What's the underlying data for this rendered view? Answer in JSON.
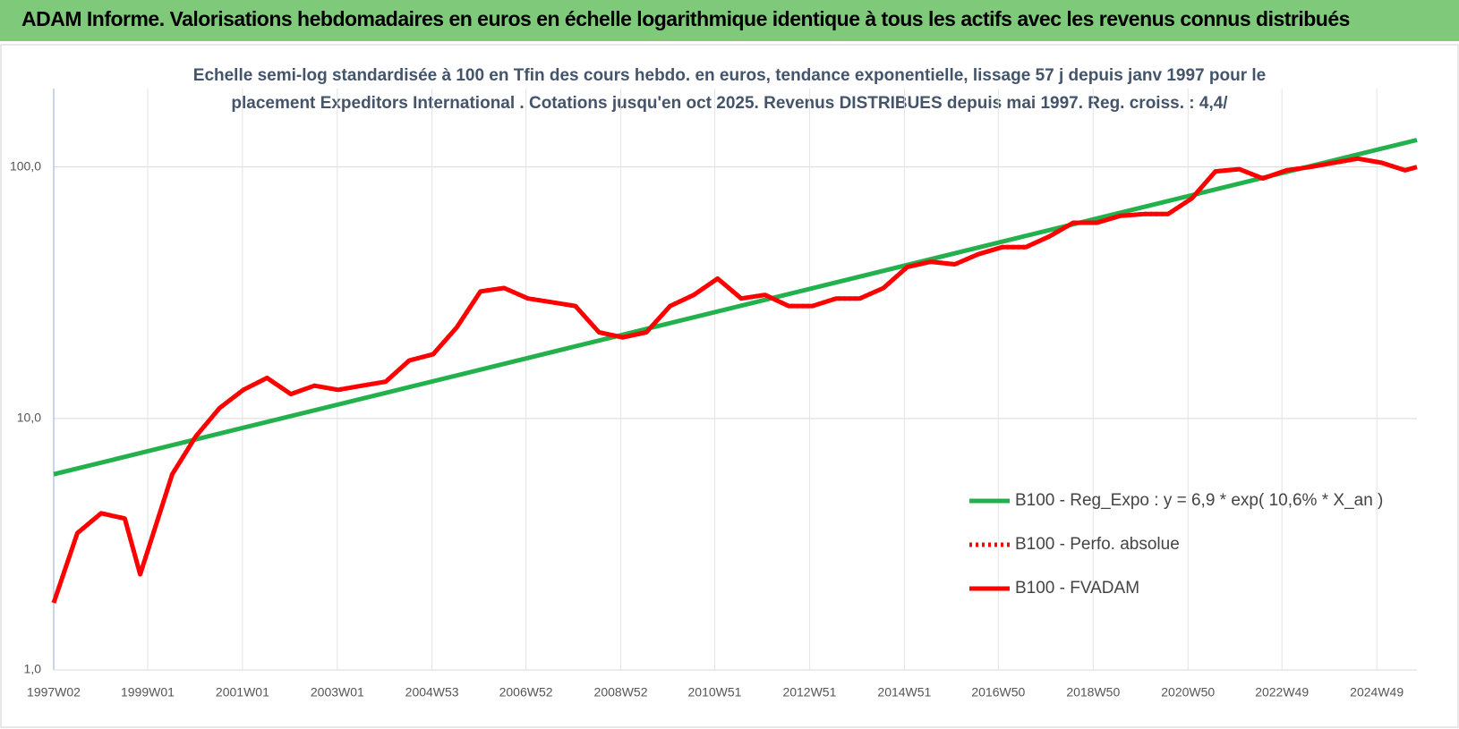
{
  "header": {
    "title": "ADAM Informe. Valorisations hebdomadaires en euros en échelle logarithmique identique à tous les actifs avec les revenus connus distribués"
  },
  "chart_data": {
    "type": "line",
    "subtitle": [
      "Echelle semi-log standardisée à 100 en Tfin des cours hebdo. en euros, tendance exponentielle, lissage 57 j depuis janv 1997 pour le",
      "placement Expeditors International . Cotations jusqu'en oct 2025. Revenus DISTRIBUES depuis mai 1997. Reg. croiss. : 4,4/"
    ],
    "log_scale": true,
    "grid": true,
    "legend": "right",
    "xlim": [
      "1997W02",
      "2025W41"
    ],
    "xticks": [
      "1997W02",
      "1999W01",
      "2001W01",
      "2003W01",
      "2004W53",
      "2006W52",
      "2008W52",
      "2010W51",
      "2012W51",
      "2014W51",
      "2016W50",
      "2018W50",
      "2020W50",
      "2022W49",
      "2024W49"
    ],
    "ylim": [
      1,
      205
    ],
    "yticks": [
      {
        "value": 1,
        "label": "1,0"
      },
      {
        "value": 10,
        "label": "10,0"
      },
      {
        "value": 100,
        "label": "100,0"
      }
    ],
    "series": [
      {
        "name": "B100 - Reg_Expo : y = 6,9 * exp( 10,6% *  X_an )",
        "color": "#22b14c",
        "x": [
          "1997W02",
          "2025W41"
        ],
        "values": [
          6.0,
          128
        ]
      },
      {
        "name": "B100 - Perfo. absolue",
        "color": "#ff0000",
        "dash": "dotted",
        "x": [
          "1997W02",
          "1997W28",
          "1998W02",
          "1998W28",
          "1998W45",
          "1999W28",
          "2000W02",
          "2000W28",
          "2001W02",
          "2001W28",
          "2002W02",
          "2002W28",
          "2003W02",
          "2003W28",
          "2004W02",
          "2004W28",
          "2005W02",
          "2005W28",
          "2006W02",
          "2006W28",
          "2007W02",
          "2007W28",
          "2008W02",
          "2008W28",
          "2009W02",
          "2009W28",
          "2010W02",
          "2010W28",
          "2011W02",
          "2011W28",
          "2012W02",
          "2012W28",
          "2013W02",
          "2013W28",
          "2014W02",
          "2014W28",
          "2015W02",
          "2015W28",
          "2016W02",
          "2016W28",
          "2017W02",
          "2017W28",
          "2018W02",
          "2018W28",
          "2019W02",
          "2019W28",
          "2020W02",
          "2020W28",
          "2021W02",
          "2021W28",
          "2022W02",
          "2022W28",
          "2023W02",
          "2023W28",
          "2024W02",
          "2024W28",
          "2025W02",
          "2025W28",
          "2025W41"
        ],
        "values": [
          1.85,
          3.5,
          4.2,
          4.0,
          2.4,
          6.0,
          8.5,
          11,
          13,
          14.5,
          12.5,
          13.5,
          13,
          13.5,
          14,
          17,
          18,
          23,
          32,
          33,
          30,
          29,
          28,
          22,
          21,
          22,
          28,
          31,
          36,
          30,
          31,
          28,
          28,
          30,
          30,
          33,
          40,
          42,
          41,
          45,
          48,
          48,
          53,
          60,
          60,
          64,
          65,
          65,
          75,
          96,
          98,
          90,
          97,
          100,
          104,
          108,
          104,
          97,
          100
        ]
      },
      {
        "name": "B100 - FVADAM",
        "color": "#ff0000",
        "x": [
          "1997W02",
          "1997W28",
          "1998W02",
          "1998W28",
          "1998W45",
          "1999W28",
          "2000W02",
          "2000W28",
          "2001W02",
          "2001W28",
          "2002W02",
          "2002W28",
          "2003W02",
          "2003W28",
          "2004W02",
          "2004W28",
          "2005W02",
          "2005W28",
          "2006W02",
          "2006W28",
          "2007W02",
          "2007W28",
          "2008W02",
          "2008W28",
          "2009W02",
          "2009W28",
          "2010W02",
          "2010W28",
          "2011W02",
          "2011W28",
          "2012W02",
          "2012W28",
          "2013W02",
          "2013W28",
          "2014W02",
          "2014W28",
          "2015W02",
          "2015W28",
          "2016W02",
          "2016W28",
          "2017W02",
          "2017W28",
          "2018W02",
          "2018W28",
          "2019W02",
          "2019W28",
          "2020W02",
          "2020W28",
          "2021W02",
          "2021W28",
          "2022W02",
          "2022W28",
          "2023W02",
          "2023W28",
          "2024W02",
          "2024W28",
          "2025W02",
          "2025W28",
          "2025W41"
        ],
        "values": [
          1.85,
          3.5,
          4.2,
          4.0,
          2.4,
          6.0,
          8.5,
          11,
          13,
          14.5,
          12.5,
          13.5,
          13,
          13.5,
          14,
          17,
          18,
          23,
          32,
          33,
          30,
          29,
          28,
          22,
          21,
          22,
          28,
          31,
          36,
          30,
          31,
          28,
          28,
          30,
          30,
          33,
          40,
          42,
          41,
          45,
          48,
          48,
          53,
          60,
          60,
          64,
          65,
          65,
          75,
          96,
          98,
          90,
          97,
          100,
          104,
          108,
          104,
          97,
          100
        ]
      }
    ]
  }
}
